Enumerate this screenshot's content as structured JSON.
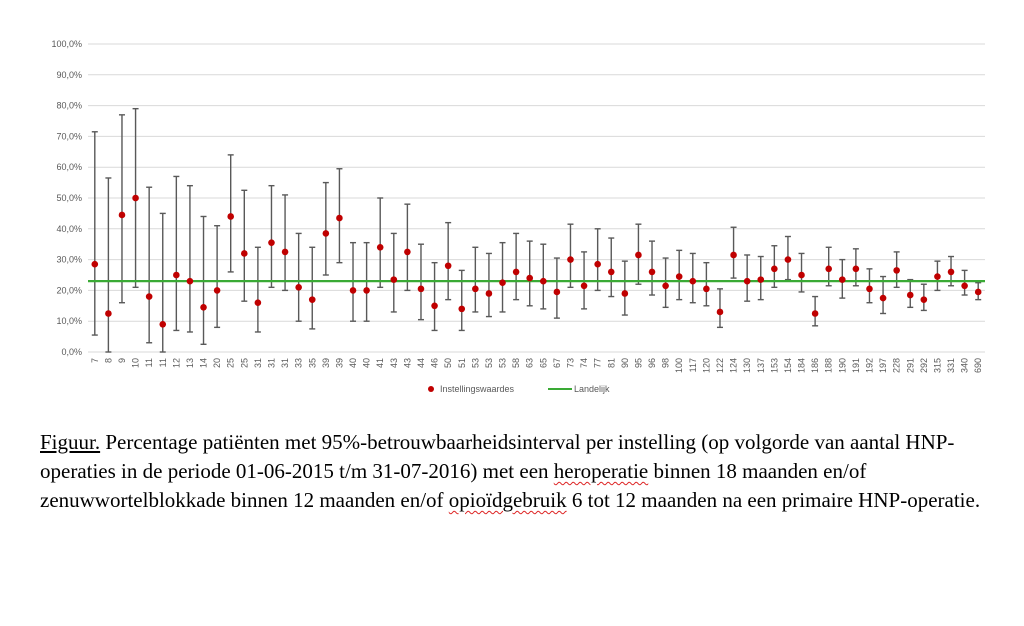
{
  "chart_data": {
    "type": "scatter",
    "title": "",
    "xlabel": "",
    "ylabel": "",
    "ylim": [
      0,
      100
    ],
    "y_ticks": [
      "0,0%",
      "10,0%",
      "20,0%",
      "30,0%",
      "40,0%",
      "50,0%",
      "60,0%",
      "70,0%",
      "80,0%",
      "90,0%",
      "100,0%"
    ],
    "grid": "horizontal",
    "legend_position": "bottom",
    "categories": [
      "7",
      "8",
      "9",
      "10",
      "11",
      "11",
      "12",
      "13",
      "14",
      "20",
      "25",
      "25",
      "31",
      "31",
      "31",
      "33",
      "35",
      "39",
      "39",
      "40",
      "40",
      "41",
      "43",
      "43",
      "44",
      "46",
      "50",
      "51",
      "53",
      "53",
      "53",
      "58",
      "63",
      "65",
      "67",
      "73",
      "74",
      "77",
      "81",
      "90",
      "95",
      "96",
      "98",
      "100",
      "117",
      "120",
      "122",
      "124",
      "130",
      "137",
      "153",
      "154",
      "184",
      "186",
      "188",
      "190",
      "191",
      "192",
      "197",
      "228",
      "291",
      "292",
      "315",
      "331",
      "340",
      "690"
    ],
    "series": [
      {
        "name": "Instellingswaardes",
        "color": "#c00000",
        "values": [
          28.5,
          12.5,
          44.5,
          50,
          18,
          9,
          25,
          23,
          14.5,
          20,
          44,
          32,
          16,
          35.5,
          32.5,
          21,
          17,
          38.5,
          43.5,
          20,
          20,
          34,
          23.5,
          32.5,
          20.5,
          15,
          28,
          14,
          20.5,
          19,
          22.5,
          26,
          24,
          23,
          19.5,
          30,
          21.5,
          28.5,
          26,
          19,
          31.5,
          26,
          21.5,
          24.5,
          23,
          20.5,
          13,
          31.5,
          23,
          23.5,
          27,
          30,
          25,
          12.5,
          27,
          23.5,
          27,
          20.5,
          17.5,
          26.5,
          18.5,
          17,
          24.5,
          26,
          21.5,
          19.5
        ],
        "lower": [
          5.5,
          0,
          16,
          21,
          3,
          0,
          7,
          6.5,
          2.5,
          8,
          26,
          16.5,
          6.5,
          21,
          20,
          10,
          7.5,
          25,
          29,
          10,
          10,
          21,
          13,
          20,
          10.5,
          7,
          17,
          7,
          13,
          11.5,
          13,
          17,
          15,
          14,
          11,
          21,
          14,
          20,
          18,
          12,
          22,
          18.5,
          14.5,
          17,
          16,
          15,
          8,
          24,
          16.5,
          17,
          21,
          23.5,
          19.5,
          8.5,
          21.5,
          17.5,
          21.5,
          16,
          12.5,
          21,
          14.5,
          13.5,
          20,
          21.5,
          18.5,
          17
        ],
        "upper": [
          71.5,
          56.5,
          77,
          79,
          53.5,
          45,
          57,
          54,
          44,
          41,
          64,
          52.5,
          34,
          54,
          51,
          38.5,
          34,
          55,
          59.5,
          35.5,
          35.5,
          50,
          38.5,
          48,
          35,
          29,
          42,
          26.5,
          34,
          32,
          35.5,
          38.5,
          36,
          35,
          30.5,
          41.5,
          32.5,
          40,
          37,
          29.5,
          41.5,
          36,
          30.5,
          33,
          32,
          29,
          20.5,
          40.5,
          31.5,
          31,
          34.5,
          37.5,
          32,
          18,
          34,
          30,
          33.5,
          27,
          24.5,
          32.5,
          23.5,
          22,
          29.5,
          31,
          26.5,
          22.5
        ]
      },
      {
        "name": "Landelijk",
        "color": "#3aaa35",
        "constant": 23
      }
    ]
  },
  "caption": {
    "label": "Figuur.",
    "part1": " Percentage patiënten met 95%-betrouwbaarheidsinterval per instelling (op volgorde van aantal HNP-operaties in de periode 01-06-2015 t/m 31-07-2016) met een ",
    "word_heroperatie": "heroperatie",
    "part2": " binnen 18 maanden en/of zenuwwortelblokkade binnen 12 maanden en/of ",
    "word_opioid": "opioïdgebruik",
    "part3": " 6 tot 12 maanden na een primaire HNP-operatie."
  }
}
